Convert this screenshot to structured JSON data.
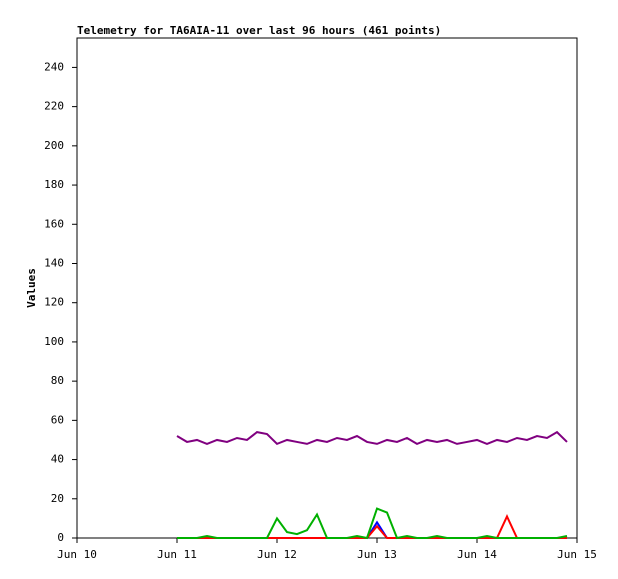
{
  "chart_data": {
    "type": "line",
    "title": "Telemetry for TA6AIA-11 over last 96 hours (461 points)",
    "y_label": "Values",
    "x": [
      1.0,
      1.1,
      1.2,
      1.3,
      1.4,
      1.5,
      1.6,
      1.7,
      1.8,
      1.9,
      2.0,
      2.1,
      2.2,
      2.3,
      2.4,
      2.5,
      2.6,
      2.7,
      2.8,
      2.9,
      3.0,
      3.1,
      3.2,
      3.3,
      3.4,
      3.5,
      3.6,
      3.7,
      3.8,
      3.9,
      4.0,
      4.1,
      4.2,
      4.3,
      4.4,
      4.5,
      4.6,
      4.7,
      4.8,
      4.9
    ],
    "series": [
      {
        "color": "#800080",
        "values": [
          52,
          49,
          50,
          48,
          50,
          49,
          51,
          50,
          54,
          53,
          48,
          50,
          49,
          48,
          50,
          49,
          51,
          50,
          52,
          49,
          48,
          50,
          49,
          51,
          48,
          50,
          49,
          50,
          48,
          49,
          50,
          48,
          50,
          49,
          51,
          50,
          52,
          51,
          54,
          49
        ]
      },
      {
        "color": "#0000ff",
        "values": [
          0,
          0,
          0,
          0,
          0,
          0,
          0,
          0,
          0,
          0,
          0,
          0,
          0,
          0,
          0,
          0,
          0,
          0,
          0,
          0,
          8,
          0,
          0,
          0,
          0,
          0,
          0,
          0,
          0,
          0,
          0,
          0,
          0,
          0,
          0,
          0,
          0,
          0,
          0,
          0
        ]
      },
      {
        "color": "#ff0000",
        "values": [
          0,
          0,
          0,
          0,
          0,
          0,
          0,
          0,
          0,
          0,
          0,
          0,
          0,
          0,
          0,
          0,
          0,
          0,
          0,
          0,
          6,
          0,
          0,
          0,
          0,
          0,
          0,
          0,
          0,
          0,
          0,
          0,
          0,
          11,
          0,
          0,
          0,
          0,
          0,
          0
        ]
      },
      {
        "color": "#00b000",
        "values": [
          0,
          0,
          0,
          1,
          0,
          0,
          0,
          0,
          0,
          0,
          10,
          3,
          2,
          4,
          12,
          0,
          0,
          0,
          1,
          0,
          15,
          13,
          0,
          1,
          0,
          0,
          1,
          0,
          0,
          0,
          0,
          1,
          0,
          0,
          0,
          0,
          0,
          0,
          0,
          1
        ]
      }
    ],
    "xlim": [
      0,
      5
    ],
    "xticks": [
      {
        "value": 0,
        "label": "Jun 10"
      },
      {
        "value": 1,
        "label": "Jun 11"
      },
      {
        "value": 2,
        "label": "Jun 12"
      },
      {
        "value": 3,
        "label": "Jun 13"
      },
      {
        "value": 4,
        "label": "Jun 14"
      },
      {
        "value": 5,
        "label": "Jun 15"
      }
    ],
    "ylim": [
      0,
      255
    ],
    "yticks": [
      0,
      20,
      40,
      60,
      80,
      100,
      120,
      140,
      160,
      180,
      200,
      220,
      240
    ]
  }
}
